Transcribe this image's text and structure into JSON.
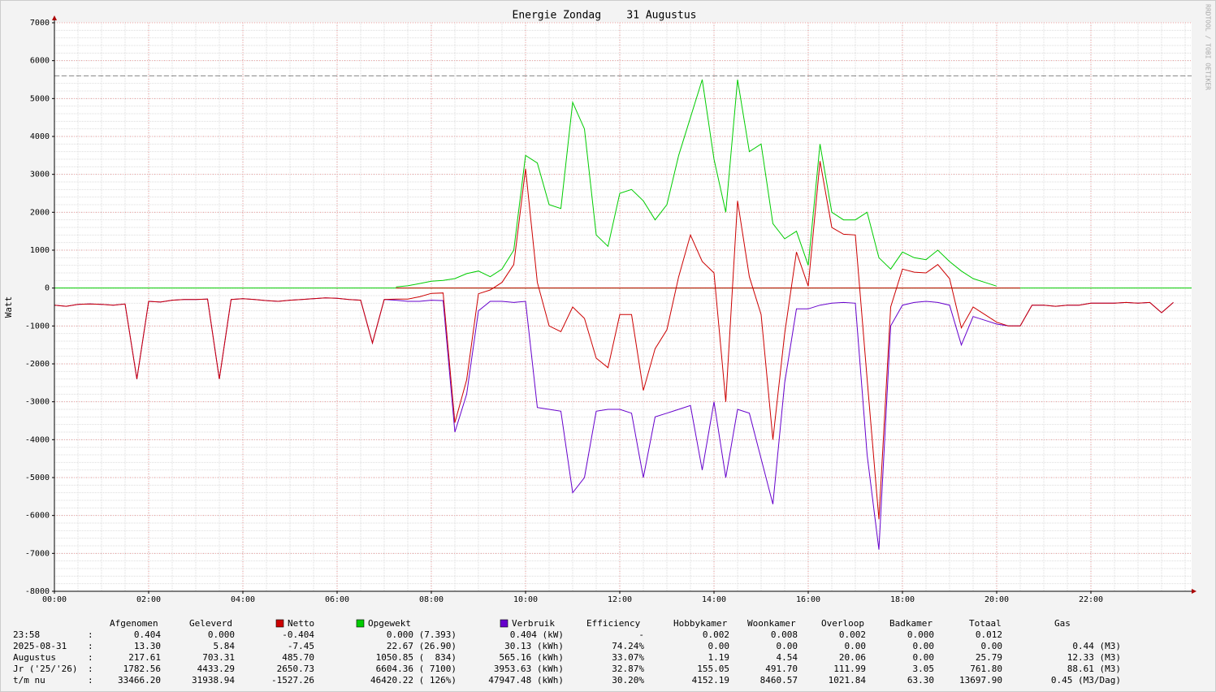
{
  "chart_data": {
    "type": "line",
    "title": "Energie Zondag    31 Augustus",
    "y_label": "Watt",
    "watermark": "RRDTOOL / TOBI OETIKER",
    "x": [
      0,
      0.25,
      0.5,
      0.75,
      1,
      1.25,
      1.5,
      1.75,
      2,
      2.25,
      2.5,
      2.75,
      3,
      3.25,
      3.5,
      3.75,
      4,
      4.25,
      4.5,
      4.75,
      5,
      5.25,
      5.5,
      5.75,
      6,
      6.25,
      6.5,
      6.75,
      7,
      7.25,
      7.5,
      7.75,
      8,
      8.25,
      8.5,
      8.75,
      9,
      9.25,
      9.5,
      9.75,
      10,
      10.25,
      10.5,
      10.75,
      11,
      11.25,
      11.5,
      11.75,
      12,
      12.25,
      12.5,
      12.75,
      13,
      13.25,
      13.5,
      13.75,
      14,
      14.25,
      14.5,
      14.75,
      15,
      15.25,
      15.5,
      15.75,
      16,
      16.25,
      16.5,
      16.75,
      17,
      17.25,
      17.5,
      17.75,
      18,
      18.25,
      18.5,
      18.75,
      19,
      19.25,
      19.5,
      19.75,
      20,
      20.25,
      20.5,
      20.75,
      21,
      21.25,
      21.5,
      21.75,
      22,
      22.25,
      22.5,
      22.75,
      23,
      23.25,
      23.5,
      23.75
    ],
    "series": [
      {
        "name": "Opgewekt",
        "color": "#00cc00",
        "values": [
          null,
          null,
          null,
          null,
          null,
          null,
          null,
          null,
          null,
          null,
          null,
          null,
          null,
          null,
          null,
          null,
          null,
          null,
          null,
          null,
          null,
          null,
          null,
          null,
          null,
          null,
          null,
          null,
          null,
          30,
          60,
          120,
          180,
          200,
          250,
          380,
          450,
          300,
          500,
          1000,
          3500,
          3300,
          2200,
          2100,
          4900,
          4200,
          1400,
          1100,
          2500,
          2600,
          2300,
          1800,
          2200,
          3500,
          4500,
          5500,
          3400,
          2000,
          5500,
          3600,
          3800,
          1700,
          1300,
          1500,
          600,
          3800,
          2000,
          1800,
          1800,
          2000,
          800,
          500,
          950,
          800,
          750,
          1000,
          700,
          450,
          250,
          150,
          50,
          null,
          null,
          null,
          null,
          null,
          null,
          null,
          null,
          null,
          null,
          null,
          null,
          null,
          null,
          null
        ]
      },
      {
        "name": "Verbruik",
        "color": "#6600cc",
        "values": [
          -450,
          -480,
          -430,
          -420,
          -430,
          -450,
          -420,
          -2400,
          -350,
          -370,
          -320,
          -300,
          -300,
          -290,
          -2400,
          -300,
          -280,
          -300,
          -330,
          -350,
          -320,
          -300,
          -280,
          -260,
          -270,
          -300,
          -320,
          -1450,
          -300,
          -320,
          -350,
          -350,
          -320,
          -330,
          -3800,
          -2800,
          -600,
          -350,
          -350,
          -380,
          -350,
          -3150,
          -3200,
          -3250,
          -5400,
          -5000,
          -3250,
          -3200,
          -3200,
          -3300,
          -5000,
          -3400,
          -3300,
          -3200,
          -3100,
          -4800,
          -3000,
          -5000,
          -3200,
          -3300,
          -4500,
          -5700,
          -2500,
          -550,
          -550,
          -450,
          -400,
          -380,
          -400,
          -4400,
          -6900,
          -1000,
          -450,
          -380,
          -350,
          -380,
          -450,
          -1500,
          -750,
          -850,
          -950,
          -1000,
          -1000,
          -450,
          -450,
          -480,
          -450,
          -450,
          -400,
          -400,
          -400,
          -380,
          -400,
          -380,
          -650,
          -380
        ]
      },
      {
        "name": "Netto",
        "color": "#cc0000",
        "values": [
          -450,
          -480,
          -430,
          -420,
          -430,
          -450,
          -420,
          -2400,
          -350,
          -370,
          -320,
          -300,
          -300,
          -290,
          -2400,
          -300,
          -280,
          -300,
          -330,
          -350,
          -320,
          -300,
          -280,
          -260,
          -270,
          -300,
          -320,
          -1450,
          -300,
          -290,
          -290,
          -230,
          -140,
          -130,
          -3550,
          -2420,
          -150,
          -50,
          150,
          620,
          3150,
          150,
          -1000,
          -1150,
          -500,
          -800,
          -1850,
          -2100,
          -700,
          -700,
          -2700,
          -1600,
          -1100,
          300,
          1400,
          700,
          400,
          -3000,
          2300,
          300,
          -700,
          -4000,
          -1200,
          950,
          50,
          3350,
          1600,
          1420,
          1400,
          -2400,
          -6100,
          -500,
          500,
          420,
          400,
          620,
          250,
          -1050,
          -500,
          -700,
          -900,
          -1000,
          -1000,
          -450,
          -450,
          -480,
          -450,
          -450,
          -400,
          -400,
          -400,
          -380,
          -400,
          -380,
          -650,
          -380
        ]
      }
    ],
    "reference_line": 5600,
    "xlim": [
      0,
      24
    ],
    "xticks": [
      {
        "value": 0,
        "label": "00:00"
      },
      {
        "value": 2,
        "label": "02:00"
      },
      {
        "value": 4,
        "label": "04:00"
      },
      {
        "value": 6,
        "label": "06:00"
      },
      {
        "value": 8,
        "label": "08:00"
      },
      {
        "value": 10,
        "label": "10:00"
      },
      {
        "value": 12,
        "label": "12:00"
      },
      {
        "value": 14,
        "label": "14:00"
      },
      {
        "value": 16,
        "label": "16:00"
      },
      {
        "value": 18,
        "label": "18:00"
      },
      {
        "value": 20,
        "label": "20:00"
      },
      {
        "value": 22,
        "label": "22:00"
      }
    ],
    "ylim": [
      -8000,
      7000
    ],
    "yticks": [
      -8000,
      -7000,
      -6000,
      -5000,
      -4000,
      -3000,
      -2000,
      -1000,
      0,
      1000,
      2000,
      3000,
      4000,
      5000,
      6000,
      7000
    ],
    "grid": true
  },
  "table": {
    "columns": [
      "Afgenomen",
      "Geleverd",
      "Efficiency",
      "Hobbykamer",
      "Woonkamer",
      "Overloop",
      "Badkamer",
      "Totaal",
      "Gas"
    ],
    "separator": ":",
    "rows": [
      {
        "label": "23:58",
        "cells": [
          "0.404",
          "0.000",
          "-0.404",
          "0.000 (7.393)",
          "0.404 (kW)",
          "-",
          "0.002",
          "0.008",
          "0.002",
          "0.000",
          "0.012"
        ]
      },
      {
        "label": "2025-08-31",
        "cells": [
          "13.30",
          "5.84",
          "-7.45",
          "22.67 (26.90)",
          "30.13 (kWh)",
          "74.24%",
          "0.00",
          "0.00",
          "0.00",
          "0.00",
          "0.00",
          "0.44 (M3)"
        ]
      },
      {
        "label": "Augustus",
        "cells": [
          "217.61",
          "703.31",
          "485.70",
          "1050.85 (  834)",
          "565.16 (kWh)",
          "33.07%",
          "1.19",
          "4.54",
          "20.06",
          "0.00",
          "25.79",
          "12.33 (M3)"
        ]
      },
      {
        "label": "Jr ('25/'26)",
        "cells": [
          "1782.56",
          "4433.29",
          "2650.73",
          "6604.36 ( 7100)",
          "3953.63 (kWh)",
          "32.87%",
          "155.05",
          "491.70",
          "111.99",
          "3.05",
          "761.80",
          "88.61 (M3)"
        ]
      },
      {
        "label": "t/m nu",
        "cells": [
          "33466.20",
          "31938.94",
          "-1527.26",
          "46420.22 ( 126%)",
          "47947.48 (kWh)",
          "30.20%",
          "4152.19",
          "8460.57",
          "1021.84",
          "63.30",
          "13697.90",
          "0.45 (M3/Dag)"
        ]
      }
    ]
  }
}
